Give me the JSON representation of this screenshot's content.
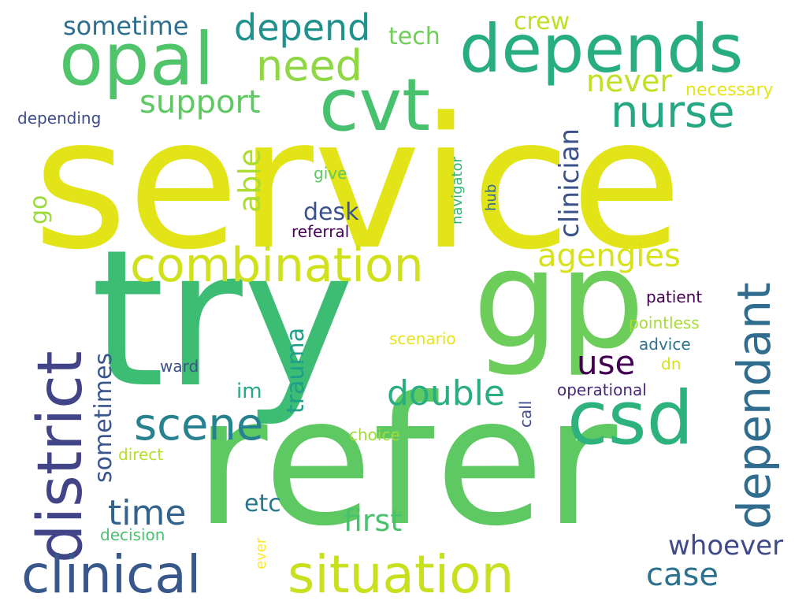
{
  "words": [
    {
      "text": "service",
      "color": "#e2e418"
    },
    {
      "text": "try",
      "color": "#3dbc74"
    },
    {
      "text": "refer",
      "color": "#5ec962"
    },
    {
      "text": "gp",
      "color": "#6ccd5a"
    },
    {
      "text": "cvt",
      "color": "#48c16e"
    },
    {
      "text": "opal",
      "color": "#50c46a"
    },
    {
      "text": "depends",
      "color": "#27ad81"
    },
    {
      "text": "csd",
      "color": "#2db27d"
    },
    {
      "text": "district",
      "color": "#414487"
    },
    {
      "text": "clinical",
      "color": "#38588c"
    },
    {
      "text": "situation",
      "color": "#c8e020"
    },
    {
      "text": "combination",
      "color": "#d0e11c"
    },
    {
      "text": "dependant",
      "color": "#2f6c8e"
    },
    {
      "text": "need",
      "color": "#8fd744"
    },
    {
      "text": "nurse",
      "color": "#26a784"
    },
    {
      "text": "scene",
      "color": "#26828e"
    },
    {
      "text": "depend",
      "color": "#21918c"
    },
    {
      "text": "support",
      "color": "#5ec962"
    },
    {
      "text": "agengies",
      "color": "#d8e219"
    },
    {
      "text": "double",
      "color": "#29af7f"
    },
    {
      "text": "time",
      "color": "#33638d"
    },
    {
      "text": "case",
      "color": "#2c728e"
    },
    {
      "text": "sometime",
      "color": "#2e6f8e"
    },
    {
      "text": "first",
      "color": "#4ac16d"
    },
    {
      "text": "whoever",
      "color": "#3e4a89"
    },
    {
      "text": "use",
      "color": "#440154"
    },
    {
      "text": "clinician",
      "color": "#3b528b"
    },
    {
      "text": "able",
      "color": "#addc30"
    },
    {
      "text": "never",
      "color": "#c2df23"
    },
    {
      "text": "trauma",
      "color": "#1f9e89"
    },
    {
      "text": "sometimes",
      "color": "#39568c"
    },
    {
      "text": "etc",
      "color": "#2a768e"
    },
    {
      "text": "tech",
      "color": "#6ece58"
    },
    {
      "text": "crew",
      "color": "#bddf26"
    },
    {
      "text": "desk",
      "color": "#3b528b"
    },
    {
      "text": "im",
      "color": "#22a884"
    },
    {
      "text": "go",
      "color": "#9bd93c"
    },
    {
      "text": "necessary",
      "color": "#e5e419"
    },
    {
      "text": "depending",
      "color": "#3e4c8a"
    },
    {
      "text": "navigator",
      "color": "#35b779"
    },
    {
      "text": "give",
      "color": "#5ec962"
    },
    {
      "text": "referral",
      "color": "#440154"
    },
    {
      "text": "hub",
      "color": "#31688e"
    },
    {
      "text": "patient",
      "color": "#440154"
    },
    {
      "text": "pointless",
      "color": "#a5db36"
    },
    {
      "text": "scenario",
      "color": "#e5e419"
    },
    {
      "text": "advice",
      "color": "#2c728e"
    },
    {
      "text": "dn",
      "color": "#d8e219"
    },
    {
      "text": "ward",
      "color": "#3b528b"
    },
    {
      "text": "operational",
      "color": "#482878"
    },
    {
      "text": "call",
      "color": "#3e4a89"
    },
    {
      "text": "choice",
      "color": "#a0da39"
    },
    {
      "text": "direct",
      "color": "#b5de2b"
    },
    {
      "text": "decision",
      "color": "#4ac16d"
    },
    {
      "text": "ever",
      "color": "#fde725"
    }
  ]
}
